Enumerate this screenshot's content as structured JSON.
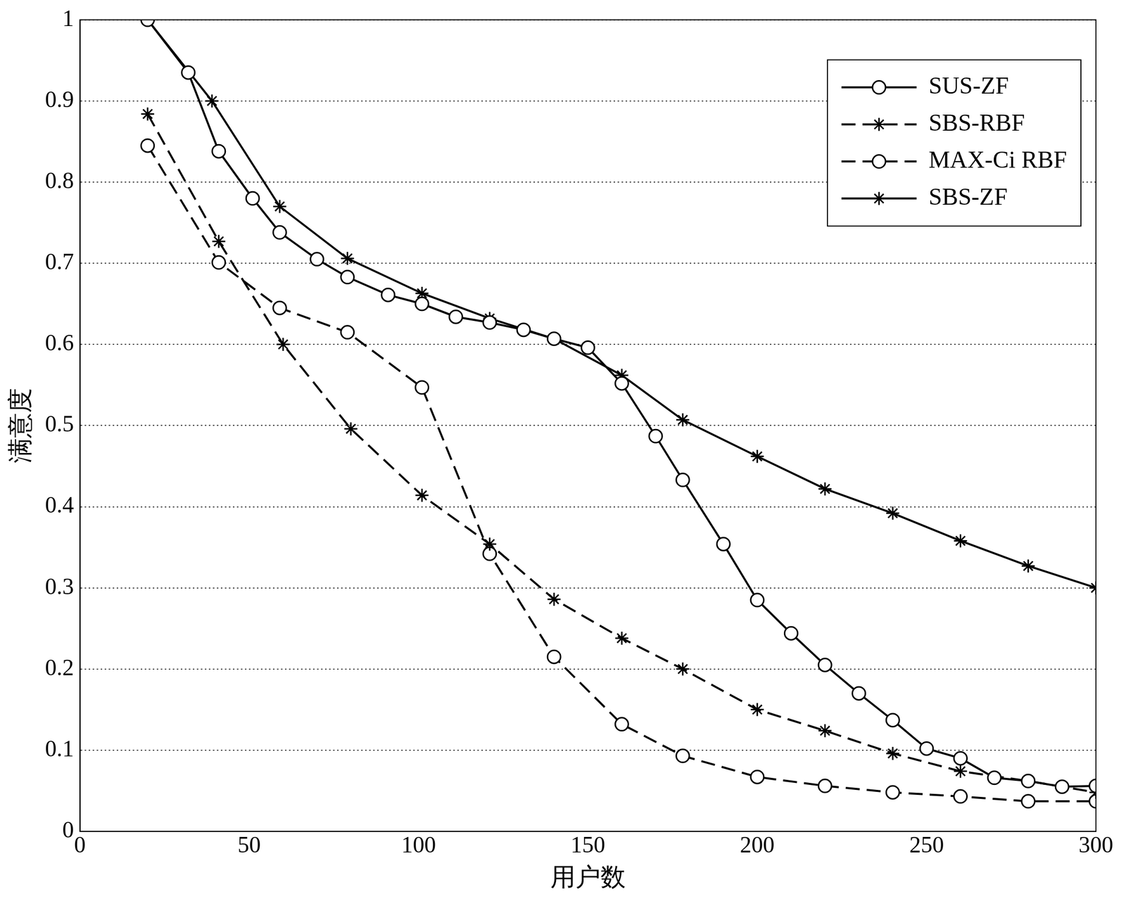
{
  "chart_data": {
    "type": "line",
    "x_label": "用户数",
    "y_label": "满意度",
    "xlim": [
      0,
      300
    ],
    "xticks": [
      0,
      50,
      100,
      150,
      200,
      250,
      300
    ],
    "ylim": [
      0,
      1
    ],
    "yticks": [
      0,
      0.1,
      0.2,
      0.3,
      0.4,
      0.5,
      0.6,
      0.7,
      0.8,
      0.9,
      1
    ],
    "grid": "y",
    "legend": "upper right",
    "series": [
      {
        "name": "SUS-ZF",
        "color": "#000000",
        "marker": "circle",
        "line_style": "solid",
        "x": [
          20,
          32,
          41,
          51,
          59,
          70,
          79,
          91,
          101,
          111,
          121,
          131,
          140,
          150,
          160,
          170,
          178,
          190,
          200,
          210,
          220,
          230,
          240,
          250,
          260,
          270,
          280,
          290,
          300
        ],
        "values": [
          1.0,
          0.935,
          0.838,
          0.78,
          0.738,
          0.705,
          0.683,
          0.661,
          0.65,
          0.634,
          0.627,
          0.618,
          0.607,
          0.596,
          0.552,
          0.487,
          0.433,
          0.354,
          0.285,
          0.244,
          0.205,
          0.17,
          0.137,
          0.102,
          0.09,
          0.066,
          0.062,
          0.055,
          0.056
        ]
      },
      {
        "name": "SBS-RBF",
        "color": "#000000",
        "marker": "star",
        "line_style": "dashed",
        "x": [
          20,
          41,
          60,
          80,
          101,
          121,
          140,
          160,
          178,
          200,
          220,
          240,
          260,
          280,
          300
        ],
        "values": [
          0.884,
          0.727,
          0.6,
          0.496,
          0.414,
          0.354,
          0.286,
          0.238,
          0.2,
          0.15,
          0.124,
          0.096,
          0.074,
          0.062,
          0.048
        ]
      },
      {
        "name": "MAX-Ci RBF",
        "color": "#000000",
        "marker": "circle",
        "line_style": "dashed",
        "x": [
          20,
          41,
          59,
          79,
          101,
          121,
          140,
          160,
          178,
          200,
          220,
          240,
          260,
          280,
          300
        ],
        "values": [
          0.845,
          0.701,
          0.645,
          0.615,
          0.547,
          0.342,
          0.215,
          0.132,
          0.093,
          0.067,
          0.056,
          0.048,
          0.043,
          0.037,
          0.037
        ]
      },
      {
        "name": "SBS-ZF",
        "color": "#000000",
        "marker": "star",
        "line_style": "solid",
        "x": [
          20,
          39,
          59,
          79,
          101,
          121,
          140,
          160,
          178,
          200,
          220,
          240,
          260,
          280,
          300
        ],
        "values": [
          1.0,
          0.9,
          0.77,
          0.706,
          0.663,
          0.632,
          0.607,
          0.562,
          0.507,
          0.462,
          0.422,
          0.392,
          0.358,
          0.327,
          0.3
        ]
      }
    ]
  }
}
